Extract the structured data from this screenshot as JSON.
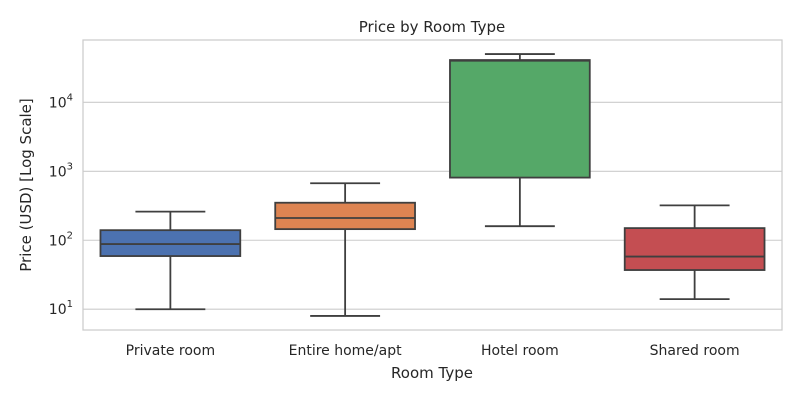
{
  "chart_data": {
    "type": "box",
    "title": "Price by Room Type",
    "xlabel": "Room Type",
    "ylabel": "Price (USD) [Log Scale]",
    "yscale": "log",
    "ylim": [
      5,
      80000
    ],
    "yticks": [
      {
        "value": 10,
        "base": "10",
        "exp": "1"
      },
      {
        "value": 100,
        "base": "10",
        "exp": "2"
      },
      {
        "value": 1000,
        "base": "10",
        "exp": "3"
      },
      {
        "value": 10000,
        "base": "10",
        "exp": "4"
      }
    ],
    "grid": true,
    "categories": [
      "Private room",
      "Entire home/apt",
      "Hotel room",
      "Shared room"
    ],
    "boxes": [
      {
        "category": "Private room",
        "whisker_low": 10,
        "q1": 59,
        "median": 88,
        "q3": 140,
        "whisker_high": 260,
        "color": "#4c72b0"
      },
      {
        "category": "Entire home/apt",
        "whisker_low": 8,
        "q1": 145,
        "median": 210,
        "q3": 350,
        "whisker_high": 670,
        "color": "#dd8452"
      },
      {
        "category": "Hotel room",
        "whisker_low": 160,
        "q1": 810,
        "median": 40000,
        "q3": 41000,
        "whisker_high": 50000,
        "color": "#55a868"
      },
      {
        "category": "Shared room",
        "whisker_low": 14,
        "q1": 37,
        "median": 58,
        "q3": 150,
        "whisker_high": 320,
        "color": "#c44e52"
      }
    ]
  }
}
